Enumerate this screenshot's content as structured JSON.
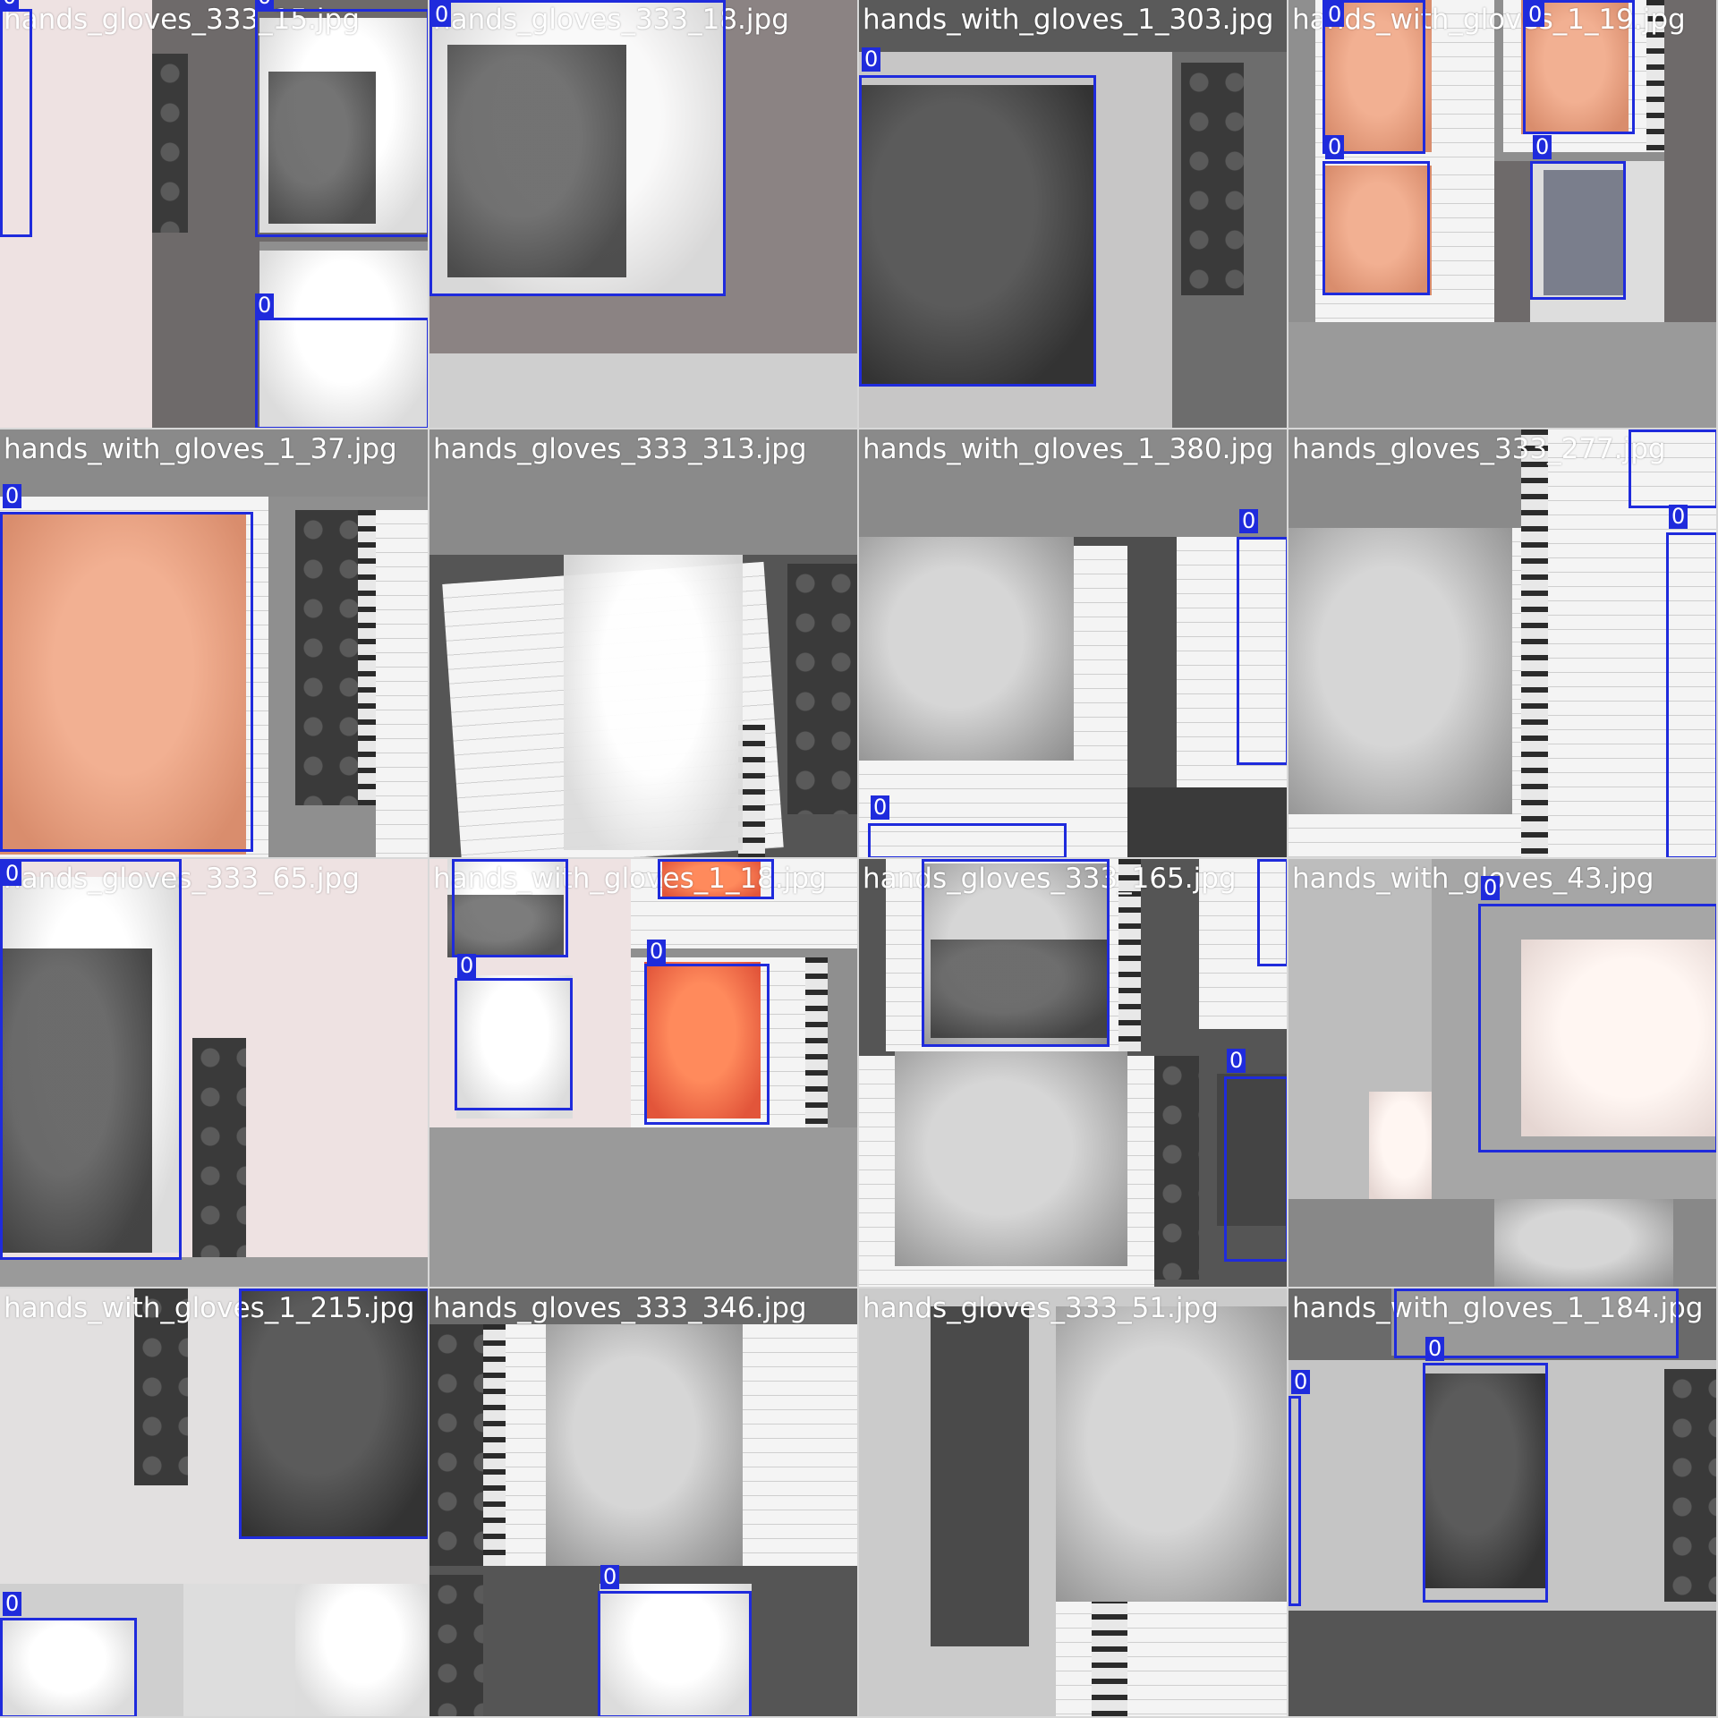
{
  "mosaic": {
    "class_label": "0",
    "box_color": "#1f2bdc",
    "tiles": [
      {
        "filename": "hands_gloves_333_15.jpg"
      },
      {
        "filename": "hands_gloves_333_18.jpg"
      },
      {
        "filename": "hands_with_gloves_1_303.jpg"
      },
      {
        "filename": "hands_with_gloves_1_19.jpg"
      },
      {
        "filename": "hands_with_gloves_1_37.jpg"
      },
      {
        "filename": "hands_gloves_333_313.jpg"
      },
      {
        "filename": "hands_with_gloves_1_380.jpg"
      },
      {
        "filename": "hands_gloves_333_277.jpg"
      },
      {
        "filename": "hands_gloves_333_65.jpg"
      },
      {
        "filename": "hands_with_gloves_1_18.jpg"
      },
      {
        "filename": "hands_gloves_333_165.jpg"
      },
      {
        "filename": "hands_with_gloves_43.jpg"
      },
      {
        "filename": "hands_with_gloves_1_215.jpg"
      },
      {
        "filename": "hands_gloves_333_346.jpg"
      },
      {
        "filename": "hands_gloves_333_51.jpg"
      },
      {
        "filename": "hands_with_gloves_1_184.jpg"
      }
    ]
  }
}
